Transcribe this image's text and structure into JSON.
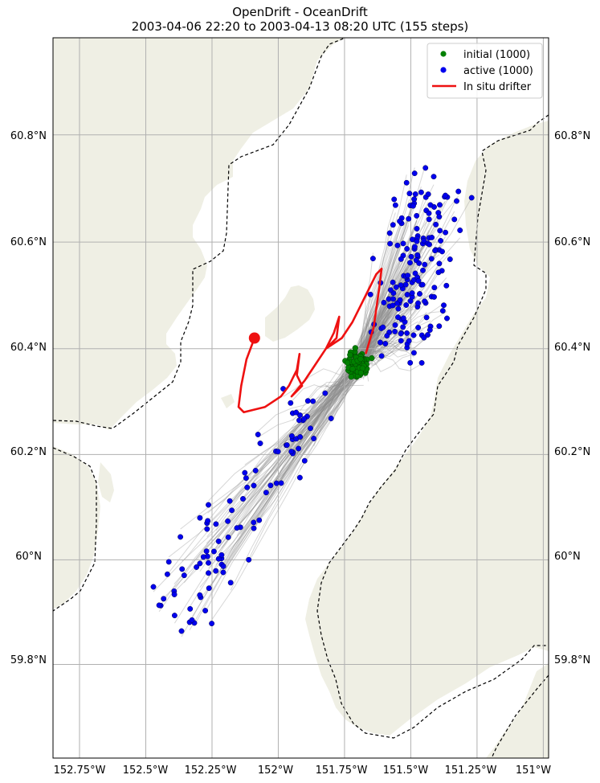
{
  "title": "OpenDrift - OceanDrift",
  "subtitle": "2003-04-06 22:20 to 2003-04-13 08:20 UTC (155 steps)",
  "colors": {
    "land": "#efefe4",
    "water": "#ffffff",
    "grid": "#b0b0b0",
    "trajectories": "#8c8c8c",
    "initial": "#008000",
    "active": "#0000ee",
    "drifter": "#ee1111"
  },
  "legend": {
    "initial": "initial (1000)",
    "active": "active (1000)",
    "drifter": "In situ drifter"
  },
  "axes": {
    "lon_labels": [
      "152.75°W",
      "152.5°W",
      "152.25°W",
      "152°W",
      "151.75°W",
      "151.5°W",
      "151.25°W",
      "151°W"
    ],
    "lat_labels": [
      "60.8°N",
      "60.6°N",
      "60.4°N",
      "60.2°N",
      "60°N",
      "59.8°N"
    ]
  },
  "chart_data": {
    "type": "map",
    "projection": "mercator",
    "extent": {
      "lon": [
        -152.85,
        -150.98
      ],
      "lat": [
        59.62,
        60.98
      ]
    },
    "grid": true,
    "legend_position": "top-right",
    "lon_ticks": [
      -152.75,
      -152.5,
      -152.25,
      -152.0,
      -151.75,
      -151.5,
      -151.25,
      -151.0
    ],
    "lat_ticks": [
      60.8,
      60.6,
      60.4,
      60.2,
      60.0,
      59.8
    ],
    "initial_particles": {
      "count": 1000,
      "center": [
        -151.7,
        60.37
      ]
    },
    "active_particles": {
      "count": 1000
    },
    "in_situ_drifter": {
      "start": [
        -152.09,
        60.42
      ],
      "track": [
        [
          -152.09,
          60.42
        ],
        [
          -152.12,
          60.38
        ],
        [
          -152.14,
          60.33
        ],
        [
          -152.15,
          60.29
        ],
        [
          -152.13,
          60.28
        ],
        [
          -152.05,
          60.29
        ],
        [
          -151.99,
          60.31
        ],
        [
          -151.96,
          60.33
        ],
        [
          -151.93,
          60.36
        ],
        [
          -151.92,
          60.39
        ],
        [
          -151.93,
          60.35
        ],
        [
          -151.91,
          60.33
        ],
        [
          -151.95,
          60.31
        ],
        [
          -151.9,
          60.34
        ],
        [
          -151.86,
          60.37
        ],
        [
          -151.82,
          60.4
        ],
        [
          -151.79,
          60.43
        ],
        [
          -151.77,
          60.46
        ],
        [
          -151.78,
          60.42
        ],
        [
          -151.82,
          60.4
        ],
        [
          -151.76,
          60.42
        ],
        [
          -151.72,
          60.45
        ],
        [
          -151.67,
          60.5
        ],
        [
          -151.63,
          60.54
        ],
        [
          -151.61,
          60.55
        ],
        [
          -151.62,
          60.51
        ],
        [
          -151.64,
          60.44
        ],
        [
          -151.67,
          60.39
        ]
      ]
    }
  }
}
